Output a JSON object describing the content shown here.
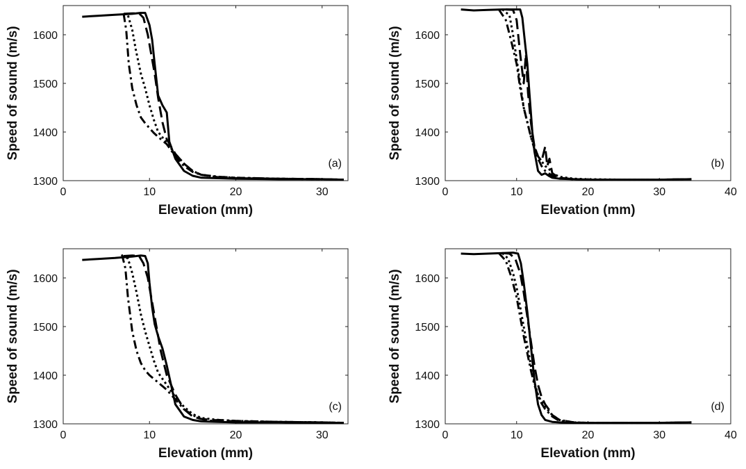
{
  "style": {
    "line_color": "#000000",
    "axis_color": "#222222",
    "background": "#ffffff"
  },
  "chart_data": [
    {
      "type": "line",
      "panel_label": "(a)",
      "xlabel": "Elevation (mm)",
      "ylabel": "Speed of sound (m/s)",
      "xlim": [
        0,
        33
      ],
      "ylim": [
        1300,
        1660
      ],
      "xticks": [
        0,
        10,
        20,
        30
      ],
      "yticks": [
        1300,
        1400,
        1500,
        1600
      ],
      "grid": false,
      "series": [
        {
          "dash": "solid",
          "x": [
            2.2,
            4,
            6,
            8,
            9,
            9.5,
            10,
            10.3,
            10.6,
            11,
            11.5,
            12,
            12.3,
            13,
            14,
            15,
            16,
            18,
            20,
            25,
            30,
            32.5
          ],
          "y": [
            1637,
            1639,
            1641,
            1643,
            1645,
            1645,
            1620,
            1590,
            1540,
            1475,
            1455,
            1440,
            1380,
            1345,
            1320,
            1310,
            1306,
            1305,
            1304,
            1303,
            1303,
            1302
          ]
        },
        {
          "dash": "dashed",
          "x": [
            7,
            8,
            8.8,
            9.3,
            9.8,
            10.2,
            10.6,
            11,
            11.5,
            12,
            13,
            14,
            15,
            16,
            18,
            20,
            25,
            30,
            32.5
          ],
          "y": [
            1643,
            1644,
            1644,
            1635,
            1600,
            1560,
            1520,
            1470,
            1420,
            1385,
            1355,
            1335,
            1320,
            1312,
            1307,
            1305,
            1304,
            1303,
            1302
          ]
        },
        {
          "dash": "dotted",
          "x": [
            7,
            7.5,
            8,
            8.4,
            9,
            9.5,
            10,
            10.5,
            11,
            12,
            13,
            14,
            15,
            16,
            18,
            20,
            25,
            30,
            32.5
          ],
          "y": [
            1643,
            1640,
            1610,
            1570,
            1520,
            1490,
            1455,
            1425,
            1400,
            1378,
            1355,
            1335,
            1320,
            1312,
            1308,
            1306,
            1304,
            1303,
            1302
          ]
        },
        {
          "dash": "dashdot",
          "x": [
            7,
            7.3,
            7.6,
            8,
            8.5,
            9,
            9.5,
            10,
            10.5,
            11,
            12,
            13,
            14,
            15,
            16,
            17,
            18,
            20,
            25,
            30,
            32.5
          ],
          "y": [
            1643,
            1610,
            1540,
            1490,
            1455,
            1430,
            1418,
            1408,
            1398,
            1390,
            1375,
            1350,
            1330,
            1318,
            1312,
            1310,
            1308,
            1306,
            1304,
            1303,
            1302
          ]
        }
      ]
    },
    {
      "type": "line",
      "panel_label": "(b)",
      "xlabel": "Elevation (mm)",
      "ylabel": "Speed of sound (m/s)",
      "xlim": [
        0,
        40
      ],
      "ylim": [
        1300,
        1660
      ],
      "xticks": [
        0,
        10,
        20,
        30,
        40
      ],
      "yticks": [
        1300,
        1400,
        1500,
        1600
      ],
      "grid": false,
      "series": [
        {
          "dash": "solid",
          "x": [
            2.2,
            4,
            6,
            8,
            9.5,
            10.5,
            10.8,
            11.2,
            11.5,
            11.8,
            12.2,
            12.5,
            13,
            13.5,
            14,
            14.5,
            15,
            16,
            18,
            20,
            25,
            30,
            34.5
          ],
          "y": [
            1652,
            1650,
            1651,
            1652,
            1652,
            1652,
            1635,
            1580,
            1540,
            1480,
            1400,
            1360,
            1320,
            1312,
            1315,
            1310,
            1306,
            1304,
            1303,
            1302,
            1302,
            1302,
            1303
          ]
        },
        {
          "dash": "dashed",
          "x": [
            8.5,
            9.5,
            10,
            10.5,
            11,
            11.3,
            11.6,
            12,
            12.5,
            13,
            13.5,
            14,
            14.3,
            14.6,
            15,
            16,
            18,
            20,
            25,
            30,
            34.5
          ],
          "y": [
            1652,
            1651,
            1630,
            1560,
            1500,
            1560,
            1480,
            1420,
            1370,
            1350,
            1340,
            1370,
            1330,
            1345,
            1315,
            1306,
            1303,
            1302,
            1302,
            1302,
            1303
          ]
        },
        {
          "dash": "dotted",
          "x": [
            8,
            9,
            9.5,
            10,
            10.5,
            11,
            11.5,
            12,
            12.5,
            13,
            13.5,
            14,
            14.5,
            15,
            16,
            18,
            20,
            25,
            30,
            34.5
          ],
          "y": [
            1652,
            1640,
            1600,
            1550,
            1500,
            1450,
            1420,
            1390,
            1370,
            1350,
            1340,
            1330,
            1325,
            1315,
            1308,
            1304,
            1303,
            1302,
            1302,
            1303
          ]
        },
        {
          "dash": "dashdot",
          "x": [
            7.5,
            8.5,
            9.2,
            10,
            10.5,
            11,
            11.5,
            12,
            12.5,
            13,
            13.5,
            14,
            15,
            16,
            18,
            20,
            25,
            30,
            34.5
          ],
          "y": [
            1652,
            1630,
            1590,
            1540,
            1490,
            1450,
            1420,
            1390,
            1365,
            1345,
            1330,
            1320,
            1310,
            1305,
            1303,
            1302,
            1302,
            1302,
            1303
          ]
        }
      ]
    },
    {
      "type": "line",
      "panel_label": "(c)",
      "xlabel": "Elevation (mm)",
      "ylabel": "Speed of sound (m/s)",
      "xlim": [
        0,
        33
      ],
      "ylim": [
        1300,
        1660
      ],
      "xticks": [
        0,
        10,
        20,
        30
      ],
      "yticks": [
        1300,
        1400,
        1500,
        1600
      ],
      "grid": false,
      "series": [
        {
          "dash": "solid",
          "x": [
            2.2,
            4,
            6,
            8,
            9,
            9.5,
            9.8,
            10,
            10.3,
            10.6,
            11,
            11.5,
            12,
            12.5,
            13,
            14,
            15,
            16,
            18,
            20,
            25,
            30,
            32.5
          ],
          "y": [
            1637,
            1639,
            1641,
            1644,
            1646,
            1645,
            1630,
            1590,
            1540,
            1505,
            1480,
            1455,
            1420,
            1380,
            1340,
            1315,
            1308,
            1305,
            1304,
            1303,
            1303,
            1302,
            1302
          ]
        },
        {
          "dash": "dashed",
          "x": [
            7,
            8,
            8.8,
            9.3,
            9.8,
            10.3,
            10.8,
            11.3,
            12,
            13,
            14,
            15,
            16,
            18,
            20,
            25,
            30,
            32.5
          ],
          "y": [
            1645,
            1646,
            1645,
            1630,
            1600,
            1550,
            1500,
            1450,
            1400,
            1360,
            1330,
            1315,
            1310,
            1307,
            1305,
            1304,
            1303,
            1302
          ]
        },
        {
          "dash": "dotted",
          "x": [
            6.8,
            7.5,
            8,
            8.5,
            9,
            9.5,
            10,
            10.5,
            11,
            12,
            13,
            14,
            15,
            16,
            18,
            20,
            25,
            30,
            32.5
          ],
          "y": [
            1645,
            1640,
            1610,
            1570,
            1525,
            1490,
            1460,
            1430,
            1405,
            1380,
            1355,
            1335,
            1320,
            1312,
            1308,
            1306,
            1304,
            1303,
            1302
          ]
        },
        {
          "dash": "dashdot",
          "x": [
            6.8,
            7.2,
            7.5,
            8,
            8.5,
            9,
            9.5,
            10,
            11,
            12,
            13,
            14,
            15,
            16,
            17,
            18,
            20,
            25,
            30,
            32.5
          ],
          "y": [
            1648,
            1620,
            1560,
            1490,
            1450,
            1425,
            1410,
            1400,
            1385,
            1370,
            1350,
            1330,
            1318,
            1310,
            1306,
            1308,
            1306,
            1304,
            1303,
            1302
          ]
        }
      ]
    },
    {
      "type": "line",
      "panel_label": "(d)",
      "xlabel": "Elevation (mm)",
      "ylabel": "Speed of sound (m/s)",
      "xlim": [
        0,
        40
      ],
      "ylim": [
        1300,
        1660
      ],
      "xticks": [
        0,
        10,
        20,
        30,
        40
      ],
      "yticks": [
        1300,
        1400,
        1500,
        1600
      ],
      "grid": false,
      "series": [
        {
          "dash": "solid",
          "x": [
            2.2,
            4,
            6,
            8,
            9.5,
            10.2,
            10.6,
            11,
            11.5,
            12,
            12.5,
            13,
            13.5,
            14,
            15,
            16,
            18,
            20,
            25,
            30,
            34.5
          ],
          "y": [
            1650,
            1649,
            1650,
            1651,
            1652,
            1650,
            1630,
            1590,
            1530,
            1460,
            1390,
            1340,
            1318,
            1308,
            1304,
            1303,
            1302,
            1302,
            1302,
            1302,
            1303
          ]
        },
        {
          "dash": "dashed",
          "x": [
            8,
            9,
            9.8,
            10.5,
            11,
            11.5,
            12,
            12.5,
            13,
            13.5,
            14,
            14.5,
            15,
            16,
            18,
            20,
            25,
            30,
            34.5
          ],
          "y": [
            1651,
            1650,
            1640,
            1610,
            1570,
            1520,
            1470,
            1420,
            1380,
            1355,
            1340,
            1330,
            1318,
            1308,
            1303,
            1302,
            1302,
            1302,
            1303
          ]
        },
        {
          "dash": "dotted",
          "x": [
            8,
            8.8,
            9.5,
            10,
            10.5,
            11,
            11.5,
            12,
            12.5,
            13,
            13.5,
            14,
            15,
            16,
            18,
            20,
            25,
            30,
            34.5
          ],
          "y": [
            1651,
            1640,
            1610,
            1580,
            1540,
            1500,
            1460,
            1420,
            1385,
            1360,
            1345,
            1335,
            1318,
            1308,
            1303,
            1302,
            1302,
            1302,
            1303
          ]
        },
        {
          "dash": "dashdot",
          "x": [
            7.5,
            8.5,
            9.3,
            10,
            10.5,
            11,
            11.5,
            12,
            12.5,
            13,
            13.5,
            14,
            15,
            16,
            18,
            20,
            25,
            30,
            34.5
          ],
          "y": [
            1651,
            1635,
            1600,
            1560,
            1520,
            1480,
            1445,
            1410,
            1380,
            1358,
            1342,
            1330,
            1315,
            1306,
            1303,
            1302,
            1302,
            1302,
            1303
          ]
        }
      ]
    }
  ]
}
